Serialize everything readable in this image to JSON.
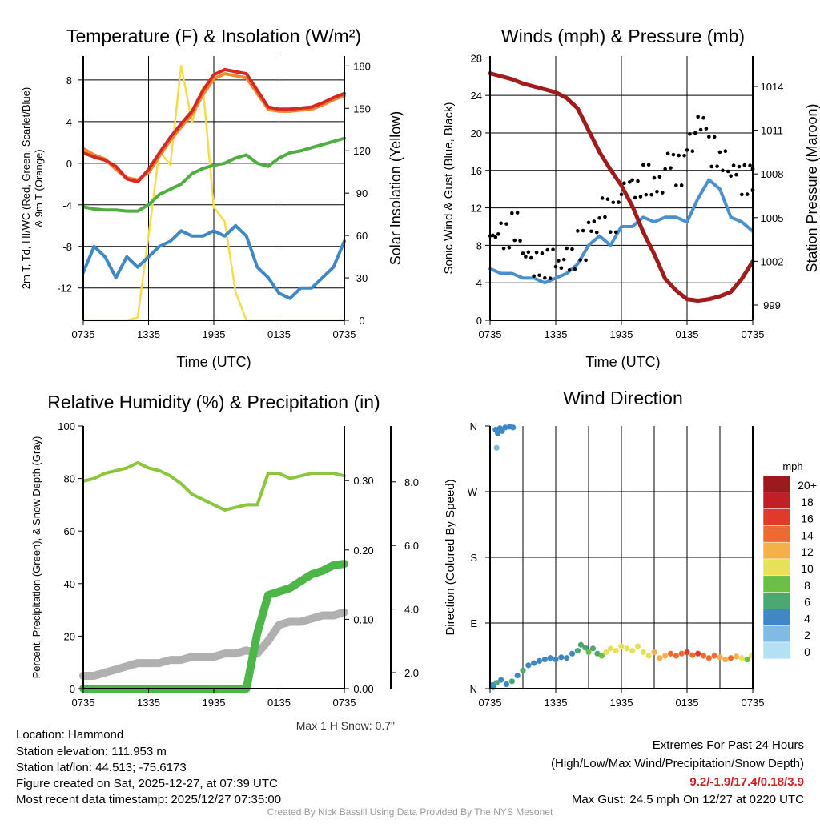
{
  "chart_data": [
    {
      "type": "line",
      "title": "Temperature (F) & Insolation (W/m²)",
      "xlabel": "Time (UTC)",
      "ylabel": "2m T, Td, HI/WC (Red, Green, Scarlet/Blue)",
      "ylabel2": "& 9m T (Orange)",
      "ylabel_right": "Solar Insolation (Yellow)",
      "x_ticks": [
        "0735",
        "1335",
        "1935",
        "0135",
        "0735"
      ],
      "y_ticks": [
        8,
        4,
        0,
        -4,
        -8,
        -12
      ],
      "y_right_ticks": [
        0,
        30,
        60,
        90,
        120,
        150,
        180
      ],
      "ylim": [
        -15.1,
        10.3
      ],
      "ylim_right": [
        0,
        187
      ],
      "x_hours": 24,
      "series": [
        {
          "name": "2m T",
          "color": "#d42a24",
          "axis": "left",
          "values": [
            1,
            0.6,
            0.3,
            -0.3,
            -1.5,
            -1.8,
            -0.6,
            1,
            2.5,
            3.8,
            5,
            7,
            8.5,
            9,
            8.8,
            8.6,
            7,
            5.4,
            5.2,
            5.2,
            5.3,
            5.4,
            5.8,
            6.3,
            6.7
          ]
        },
        {
          "name": "9m T",
          "color": "#f0892e",
          "axis": "left",
          "values": [
            1.4,
            0.8,
            0.4,
            -0.6,
            -1.4,
            -1.6,
            -0.9,
            0.7,
            2.2,
            3.5,
            4.7,
            6.6,
            8.1,
            8.6,
            8.4,
            8.2,
            6.7,
            5.2,
            5,
            5,
            5.1,
            5.2,
            5.6,
            6.1,
            6.5
          ]
        },
        {
          "name": "Td",
          "color": "#4fae3f",
          "axis": "left",
          "values": [
            -4.2,
            -4.4,
            -4.5,
            -4.5,
            -4.6,
            -4.6,
            -4,
            -3,
            -2.5,
            -2,
            -1,
            -0.5,
            -0.2,
            0,
            0.5,
            0.8,
            0,
            -0.3,
            0.5,
            1,
            1.2,
            1.5,
            1.8,
            2.1,
            2.4
          ]
        },
        {
          "name": "HI/WC",
          "color": "#3f88c5",
          "axis": "left",
          "values": [
            -10.5,
            -8,
            -9,
            -11,
            -9,
            -10,
            -9,
            -8,
            -7.5,
            -6.5,
            -7,
            -7,
            -6.5,
            -7,
            -6,
            -7,
            -10,
            -11,
            -12.5,
            -13,
            -12,
            -12,
            -11,
            -10,
            -7.5
          ]
        },
        {
          "name": "Solar Insolation",
          "color": "#f5dc4a",
          "axis": "right",
          "values": [
            0,
            0,
            0,
            0,
            0,
            2,
            60,
            120,
            110,
            180,
            140,
            165,
            80,
            70,
            20,
            0,
            0,
            0,
            0,
            0,
            0,
            0,
            0,
            0,
            0
          ]
        }
      ]
    },
    {
      "type": "line",
      "title": "Winds (mph) & Pressure (mb)",
      "xlabel": "Time (UTC)",
      "ylabel": "Sonic Wind & Gust (Blue, Black)",
      "ylabel_right": "Station Pressure (Maroon)",
      "x_ticks": [
        "0735",
        "1335",
        "1935",
        "0135",
        "0735"
      ],
      "y_ticks": [
        0,
        4,
        8,
        12,
        16,
        20,
        24,
        28
      ],
      "y_right_ticks": [
        999,
        1002,
        1005,
        1008,
        1011,
        1014
      ],
      "ylim": [
        0,
        28.2
      ],
      "series": [
        {
          "name": "Sonic Wind",
          "color": "#4a90cf",
          "values": [
            5.5,
            5,
            5,
            4.5,
            4.5,
            4,
            4.5,
            5,
            6,
            8,
            9,
            8,
            10,
            10,
            11,
            10.5,
            11,
            11,
            10.5,
            13,
            15,
            14,
            11,
            10.5,
            9.5
          ]
        },
        {
          "name": "Gust",
          "color": "#000000",
          "values": [
            9,
            9,
            10,
            7,
            6,
            6,
            6,
            6.5,
            8,
            10,
            12,
            11,
            14,
            14,
            15,
            14.5,
            17,
            16,
            19,
            21,
            18,
            17,
            16,
            15,
            15
          ]
        },
        {
          "name": "Station Pressure",
          "color": "#a01c1c",
          "values": [
            1014.9,
            1014.7,
            1014.5,
            1014.2,
            1014,
            1013.8,
            1013.6,
            1013.2,
            1012.5,
            1011,
            1009.5,
            1008.3,
            1007.2,
            1005.8,
            1004,
            1002.5,
            1000.8,
            1000,
            999.4,
            999.3,
            999.4,
            999.6,
            999.9,
            1000.8,
            1002
          ]
        }
      ]
    },
    {
      "type": "line",
      "title": "Relative Humidity (%) & Precipitation (in)",
      "ylabel": "Percent, Precipitation (Green), & Snow Depth (Gray)",
      "x_ticks": [
        "0735",
        "1335",
        "1935",
        "0135",
        "0735"
      ],
      "y_ticks": [
        0,
        20,
        40,
        60,
        80,
        100
      ],
      "precip_ticks": [
        "0.00",
        "0.10",
        "0.20",
        "0.30"
      ],
      "snow_ticks": [
        "2.0",
        "4.0",
        "6.0",
        "8.0"
      ],
      "note": "Max 1 H Snow: 0.7\"",
      "series": [
        {
          "name": "Relative Humidity",
          "color": "#8cc63f",
          "values": [
            79,
            80,
            82,
            83,
            84,
            86,
            84,
            83,
            81,
            78,
            74,
            72,
            70,
            68,
            69,
            70,
            70,
            82,
            82,
            80,
            81,
            82,
            82,
            82,
            81
          ]
        },
        {
          "name": "Precipitation",
          "color": "#4cb748",
          "values": [
            0,
            0,
            0,
            0,
            0,
            0,
            0,
            0,
            0,
            0,
            0,
            0,
            0,
            0,
            0,
            0,
            0.08,
            0.135,
            0.14,
            0.145,
            0.155,
            0.165,
            0.17,
            0.178,
            0.18
          ]
        },
        {
          "name": "Snow Depth",
          "color": "#b0b0b0",
          "values": [
            1.9,
            1.9,
            2.0,
            2.1,
            2.2,
            2.3,
            2.3,
            2.3,
            2.4,
            2.4,
            2.5,
            2.5,
            2.5,
            2.6,
            2.6,
            2.7,
            2.6,
            3.0,
            3.5,
            3.6,
            3.6,
            3.7,
            3.8,
            3.8,
            3.9
          ]
        }
      ]
    },
    {
      "type": "scatter",
      "title": "Wind Direction",
      "ylabel": "Direction (Colored By Speed)",
      "x_ticks": [
        "0735",
        "1335",
        "1935",
        "0135",
        "0735"
      ],
      "y_ticks": [
        "N",
        "E",
        "S",
        "W",
        "N"
      ],
      "legend_title": "mph",
      "legend": [
        {
          "label": "20+",
          "color": "#9b1a1d"
        },
        {
          "label": "18",
          "color": "#c01f26"
        },
        {
          "label": "16",
          "color": "#e03a2a"
        },
        {
          "label": "14",
          "color": "#ef6a2f"
        },
        {
          "label": "12",
          "color": "#f5b04a"
        },
        {
          "label": "10",
          "color": "#e6e05a"
        },
        {
          "label": "8",
          "color": "#6bbf45"
        },
        {
          "label": "6",
          "color": "#4aa870"
        },
        {
          "label": "4",
          "color": "#3f88c5"
        },
        {
          "label": "2",
          "color": "#7fbbe3"
        },
        {
          "label": "0",
          "color": "#b3e0f5"
        }
      ],
      "points": [
        [
          0.3,
          2,
          4
        ],
        [
          0.5,
          355,
          4
        ],
        [
          0.7,
          350,
          4
        ],
        [
          0.9,
          357,
          4
        ],
        [
          1.1,
          353,
          4
        ],
        [
          1.4,
          358,
          4
        ],
        [
          1.8,
          359,
          4
        ],
        [
          2.1,
          358,
          4
        ],
        [
          0.6,
          330,
          3
        ],
        [
          0.2,
          5,
          5
        ],
        [
          0.6,
          8,
          6
        ],
        [
          1.0,
          12,
          5
        ],
        [
          1.5,
          6,
          5
        ],
        [
          2.0,
          10,
          6
        ],
        [
          2.5,
          18,
          5
        ],
        [
          3.0,
          25,
          6
        ],
        [
          3.5,
          32,
          4
        ],
        [
          4.0,
          35,
          4
        ],
        [
          4.5,
          38,
          4
        ],
        [
          5.0,
          40,
          4
        ],
        [
          5.5,
          42,
          4
        ],
        [
          6.0,
          40,
          4
        ],
        [
          6.5,
          43,
          4
        ],
        [
          7.0,
          42,
          4
        ],
        [
          7.5,
          48,
          5
        ],
        [
          8.0,
          52,
          6
        ],
        [
          8.3,
          60,
          7
        ],
        [
          8.7,
          56,
          6
        ],
        [
          9.0,
          50,
          8
        ],
        [
          9.4,
          55,
          7
        ],
        [
          9.8,
          48,
          6
        ],
        [
          10.2,
          45,
          8
        ],
        [
          10.6,
          50,
          10
        ],
        [
          11.0,
          55,
          10
        ],
        [
          11.5,
          52,
          10
        ],
        [
          12.0,
          58,
          10
        ],
        [
          12.5,
          55,
          11
        ],
        [
          13.0,
          52,
          10
        ],
        [
          13.5,
          58,
          10
        ],
        [
          14.0,
          50,
          11
        ],
        [
          14.5,
          45,
          10
        ],
        [
          15.0,
          50,
          12
        ],
        [
          15.5,
          42,
          12
        ],
        [
          16.0,
          45,
          13
        ],
        [
          16.5,
          48,
          14
        ],
        [
          17.0,
          45,
          14
        ],
        [
          17.5,
          48,
          15
        ],
        [
          18.0,
          50,
          16
        ],
        [
          18.5,
          46,
          15
        ],
        [
          19.0,
          48,
          16
        ],
        [
          19.5,
          45,
          14
        ],
        [
          20.0,
          42,
          15
        ],
        [
          20.5,
          45,
          14
        ],
        [
          21.0,
          43,
          13
        ],
        [
          21.5,
          40,
          12
        ],
        [
          22.0,
          42,
          14
        ],
        [
          22.5,
          44,
          12
        ],
        [
          23.0,
          42,
          11
        ],
        [
          23.5,
          40,
          9
        ],
        [
          23.9,
          45,
          10
        ]
      ]
    }
  ],
  "info": {
    "location": "Location: Hammond",
    "elevation": "Station elevation: 111.953 m",
    "latlon": "Station lat/lon: 44.513; -75.6173",
    "created": "Figure created on Sat, 2025-12-27, at 07:39 UTC",
    "recent": "Most recent data timestamp: 2025/12/27 07:35:00",
    "extremes_title": "Extremes For Past 24 Hours",
    "extremes_sub": "(High/Low/Max Wind/Precipitation/Snow Depth)",
    "extremes_values": "9.2/-1.9/17.4/0.18/3.9",
    "max_gust": "Max Gust: 24.5 mph On 12/27 at 0220 UTC",
    "credit": "Created By Nick Bassill Using Data Provided By The NYS Mesonet"
  }
}
